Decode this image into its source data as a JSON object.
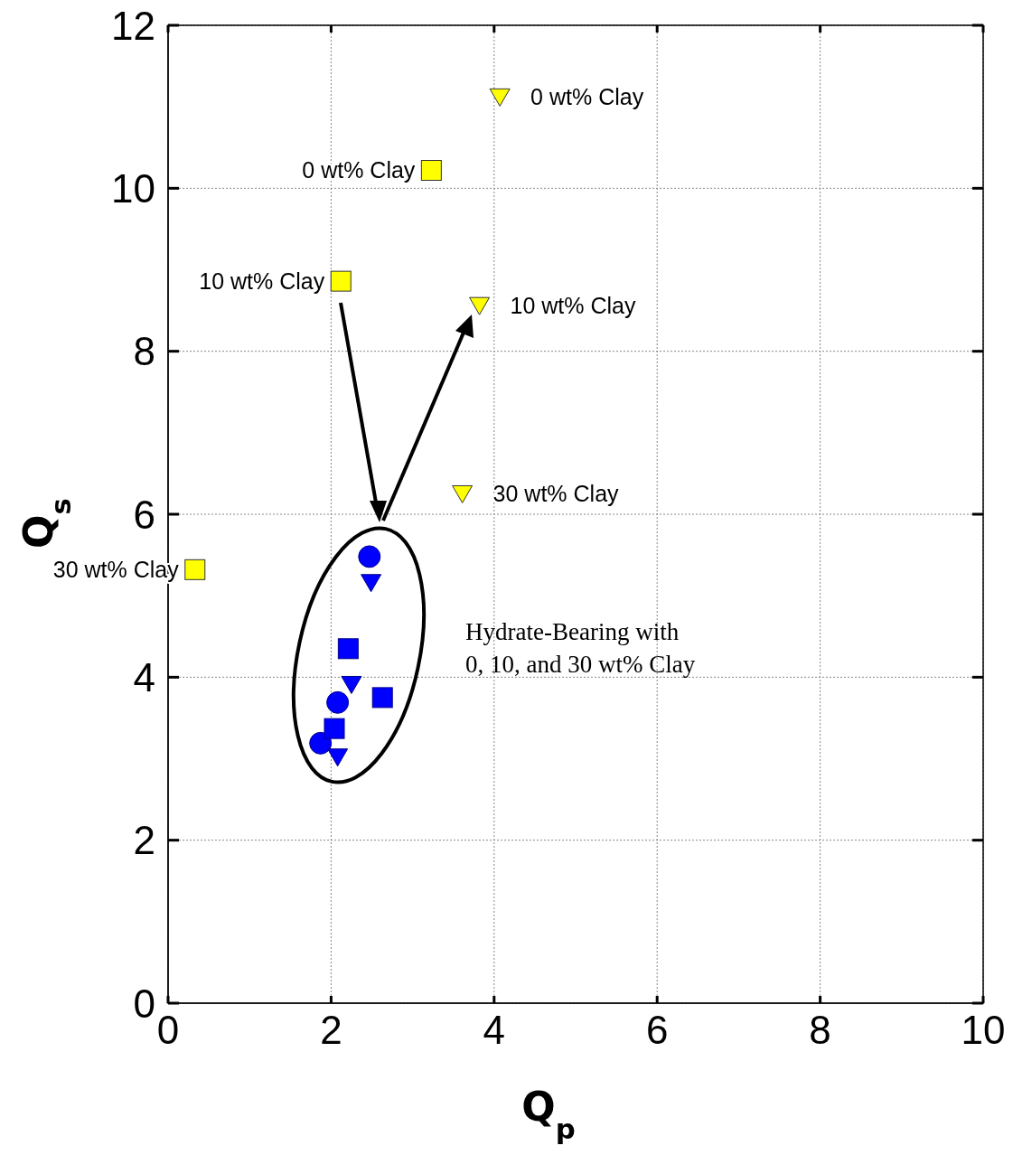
{
  "chart_data": {
    "type": "scatter",
    "xlabel": "Q$_{p}$",
    "ylabel": "Q$_{s}$",
    "xlim": [
      0,
      10
    ],
    "ylim": [
      0,
      12
    ],
    "xticks": [
      0,
      2,
      4,
      6,
      8,
      10
    ],
    "yticks": [
      0,
      2,
      4,
      6,
      8,
      10,
      12
    ],
    "grid": true,
    "series": [
      {
        "color": "#ffff00",
        "marker": "square",
        "x": [
          3.23,
          2.12,
          0.33
        ],
        "values": [
          10.22,
          8.86,
          5.32
        ]
      },
      {
        "color": "#ffff00",
        "marker": "triangle",
        "x": [
          4.07,
          3.82,
          3.61
        ],
        "values": [
          11.12,
          8.56,
          6.25
        ]
      },
      {
        "color": "#0000ff",
        "marker": "circle",
        "x": [
          2.47,
          2.08,
          1.87
        ],
        "values": [
          5.48,
          3.69,
          3.19
        ]
      },
      {
        "color": "#0000ff",
        "marker": "square",
        "x": [
          2.21,
          2.63,
          2.04
        ],
        "values": [
          4.35,
          3.75,
          3.37
        ]
      },
      {
        "color": "#0000ff",
        "marker": "triangle",
        "x": [
          2.49,
          2.25,
          2.08
        ],
        "values": [
          5.16,
          3.91,
          3.02
        ]
      }
    ],
    "annotations": [
      {
        "text": "0 wt% Clay",
        "x": 3.23,
        "y": 10.22
      },
      {
        "text": "10 wt% Clay",
        "x": 2.12,
        "y": 8.86
      },
      {
        "text": "30 wt% Clay",
        "x": 0.33,
        "y": 5.32
      },
      {
        "text": "0 wt% Clay",
        "x": 4.07,
        "y": 11.12
      },
      {
        "text": "10 wt% Clay",
        "x": 3.82,
        "y": 8.56
      },
      {
        "text": "30 wt% Clay",
        "x": 3.61,
        "y": 6.25
      },
      "Hydrate-Bearing with\n0, 10, and 30 wt% Clay"
    ]
  }
}
